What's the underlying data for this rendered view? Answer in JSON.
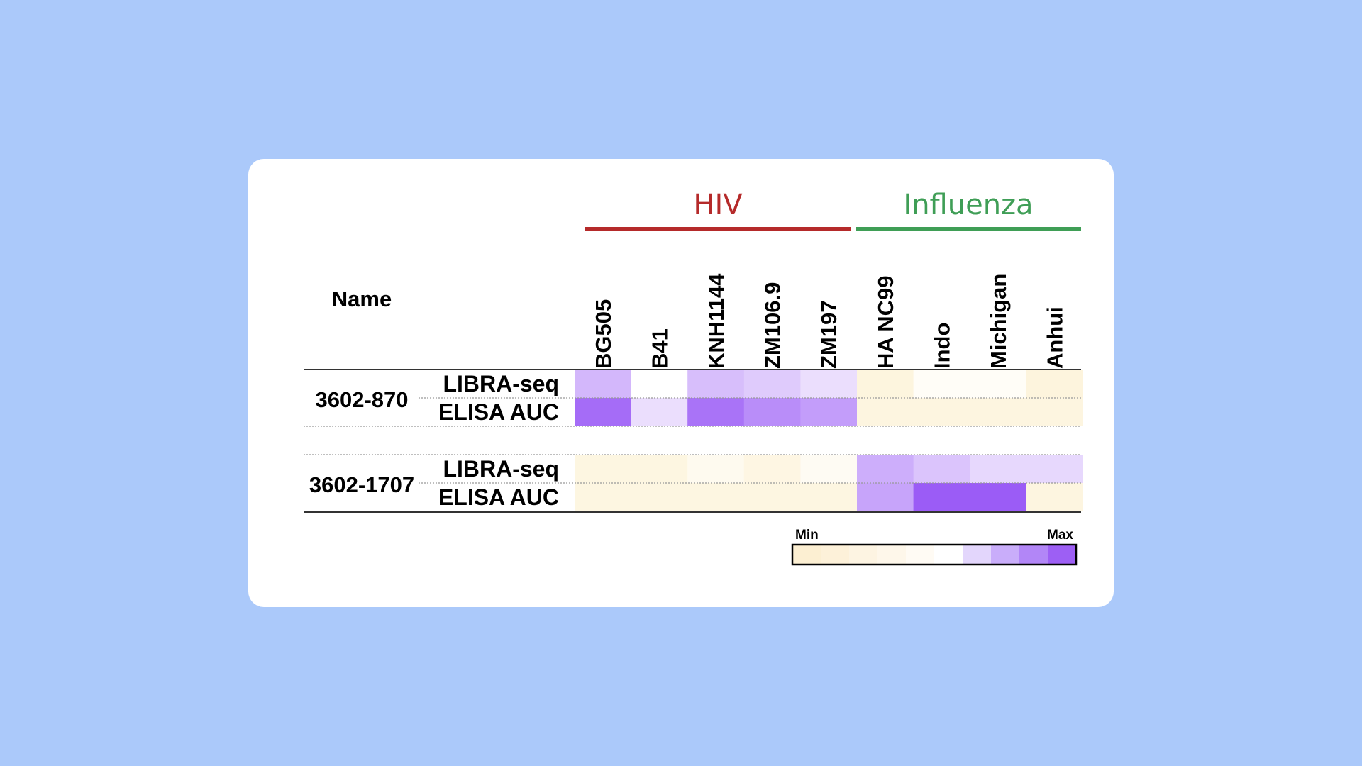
{
  "chart_data": {
    "type": "heatmap",
    "name_header": "Name",
    "groups": [
      {
        "label": "HIV",
        "color": "#b52a2a",
        "columns": [
          "BG505",
          "B41",
          "KNH1144",
          "ZM106.9",
          "ZM197"
        ]
      },
      {
        "label": "Influenza",
        "color": "#3f9e56",
        "columns": [
          "HA NC99",
          "Indo",
          "Michigan",
          "Anhui"
        ]
      }
    ],
    "columns": [
      "BG505",
      "B41",
      "KNH1144",
      "ZM106.9",
      "ZM197",
      "HA NC99",
      "Indo",
      "Michigan",
      "Anhui"
    ],
    "samples": [
      {
        "name": "3602-870",
        "rows": [
          {
            "label": "LIBRA-seq",
            "values": [
              0.72,
              0.5,
              0.7,
              0.66,
              0.6,
              0.08,
              0.4,
              0.4,
              0.06
            ]
          },
          {
            "label": "ELISA AUC",
            "values": [
              0.95,
              0.6,
              0.93,
              0.85,
              0.8,
              0.1,
              0.1,
              0.1,
              0.1
            ]
          }
        ]
      },
      {
        "name": "3602-1707",
        "rows": [
          {
            "label": "LIBRA-seq",
            "values": [
              0.12,
              0.12,
              0.3,
              0.14,
              0.35,
              0.75,
              0.68,
              0.62,
              0.62
            ]
          },
          {
            "label": "ELISA AUC",
            "values": [
              0.12,
              0.12,
              0.12,
              0.12,
              0.12,
              0.78,
              1.0,
              1.0,
              0.1
            ]
          }
        ]
      }
    ],
    "colorscale": {
      "min_label": "Min",
      "max_label": "Max",
      "stops": [
        "#fdf3d8",
        "#ffffff",
        "#9b5cf6"
      ],
      "steps": [
        "#fcefd2",
        "#fdf1d9",
        "#fdf4e2",
        "#fef7ea",
        "#fffbf4",
        "#ffffff",
        "#e3d6fc",
        "#c9adfa",
        "#b286f7",
        "#9d5ff4"
      ]
    }
  }
}
